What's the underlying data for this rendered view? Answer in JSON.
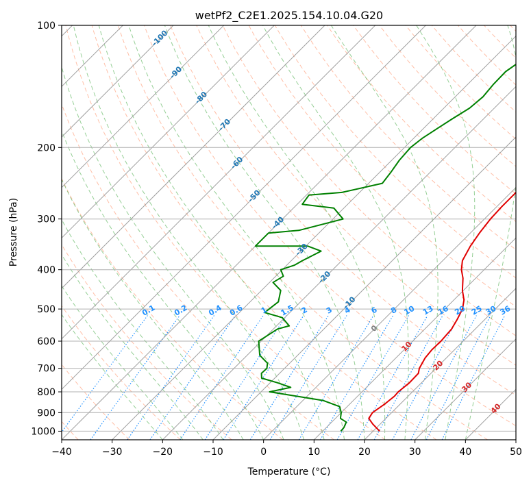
{
  "chart_data": {
    "type": "line",
    "title": "wetPf2_C2E1.2025.154.10.04.G20",
    "xlabel": "Temperature (°C)",
    "ylabel": "Pressure (hPa)",
    "xlim": [
      -40,
      50
    ],
    "ylim": [
      1050,
      100
    ],
    "y_scale": "log",
    "x_ticks": [
      -40,
      -30,
      -20,
      -10,
      0,
      10,
      20,
      30,
      40,
      50
    ],
    "x_tick_labels": [
      "−40",
      "−30",
      "−20",
      "−10",
      "0",
      "10",
      "20",
      "30",
      "40",
      "50"
    ],
    "y_ticks": [
      100,
      200,
      300,
      400,
      500,
      600,
      700,
      800,
      900,
      1000
    ],
    "y_tick_labels": [
      "100",
      "200",
      "300",
      "400",
      "500",
      "600",
      "700",
      "800",
      "900",
      "1000"
    ],
    "grid": true,
    "skew": 1.0,
    "series": [
      {
        "kind": "temperature",
        "color": "#e00000",
        "points": [
          [
            21.3,
            1000
          ],
          [
            18.5,
            960
          ],
          [
            16.6,
            930
          ],
          [
            16.2,
            900
          ],
          [
            16.9,
            860
          ],
          [
            17.3,
            820
          ],
          [
            17.2,
            800
          ],
          [
            17.6,
            760
          ],
          [
            17.5,
            720
          ],
          [
            16.7,
            700
          ],
          [
            15.8,
            660
          ],
          [
            15.5,
            630
          ],
          [
            15.6,
            600
          ],
          [
            15.3,
            560
          ],
          [
            14.5,
            530
          ],
          [
            13.5,
            500
          ],
          [
            12.0,
            475
          ],
          [
            9.8,
            450
          ],
          [
            7.5,
            420
          ],
          [
            5.5,
            400
          ],
          [
            3.9,
            380
          ],
          [
            2.6,
            350
          ],
          [
            1.8,
            325
          ],
          [
            1.2,
            300
          ],
          [
            1.0,
            280
          ],
          [
            1.0,
            260
          ],
          [
            0.8,
            240
          ],
          [
            0.1,
            220
          ],
          [
            -1.6,
            200
          ],
          [
            -3.6,
            175
          ],
          [
            -5.6,
            155
          ],
          [
            -6.7,
            145
          ],
          [
            -8.0,
            130
          ],
          [
            -8.1,
            120
          ],
          [
            -7.5,
            110
          ],
          [
            -7.6,
            100
          ]
        ]
      },
      {
        "kind": "dewpoint",
        "color": "#008000",
        "points": [
          [
            13.6,
            1000
          ],
          [
            13.5,
            980
          ],
          [
            12.9,
            950
          ],
          [
            11.0,
            930
          ],
          [
            10.0,
            900
          ],
          [
            8.5,
            870
          ],
          [
            4.0,
            840
          ],
          [
            -8.3,
            800
          ],
          [
            -5.0,
            780
          ],
          [
            -8.5,
            760
          ],
          [
            -12.6,
            740
          ],
          [
            -13.6,
            720
          ],
          [
            -13.5,
            700
          ],
          [
            -14.4,
            680
          ],
          [
            -17.5,
            650
          ],
          [
            -20.5,
            600
          ],
          [
            -19.2,
            560
          ],
          [
            -17.5,
            550
          ],
          [
            -20.5,
            525
          ],
          [
            -25.0,
            510
          ],
          [
            -24.4,
            480
          ],
          [
            -26.2,
            450
          ],
          [
            -29.3,
            430
          ],
          [
            -28.5,
            415
          ],
          [
            -30.3,
            400
          ],
          [
            -28.5,
            390
          ],
          [
            -27.8,
            380
          ],
          [
            -26.0,
            360
          ],
          [
            -29.6,
            350
          ],
          [
            -40.0,
            350
          ],
          [
            -40.0,
            325
          ],
          [
            -34.5,
            320
          ],
          [
            -28.0,
            300
          ],
          [
            -32.0,
            282
          ],
          [
            -39.0,
            276
          ],
          [
            -39.5,
            262
          ],
          [
            -33.5,
            258
          ],
          [
            -27.3,
            245
          ],
          [
            -27.8,
            230
          ],
          [
            -28.5,
            215
          ],
          [
            -28.8,
            200
          ],
          [
            -28.3,
            190
          ],
          [
            -27.3,
            180
          ],
          [
            -26.2,
            170
          ],
          [
            -24.9,
            160
          ],
          [
            -24.5,
            150
          ],
          [
            -24.9,
            140
          ],
          [
            -25.0,
            130
          ],
          [
            -23.8,
            120
          ],
          [
            -23.5,
            110
          ],
          [
            -23.1,
            100
          ]
        ]
      }
    ],
    "isotherm_labels": [
      "-100",
      "-90",
      "-80",
      "-70",
      "-60",
      "-50",
      "-40",
      "-30",
      "-20",
      "-10",
      "0",
      "10",
      "20",
      "30",
      "40"
    ],
    "mixing_ratio_labels": [
      "0.1",
      "0.2",
      "0.4",
      "0.6",
      "1",
      "1.5",
      "2",
      "3",
      "4",
      "6",
      "8",
      "10",
      "13",
      "16",
      "20",
      "25",
      "30",
      "36"
    ],
    "colors": {
      "isotherm_cold": "#1f77b4",
      "isotherm_zero": "#808080",
      "isotherm_warm": "#d62728",
      "mixing_ratio": "#1e90ff",
      "dry_adiabat": "#ff7f50",
      "moist_adiabat": "#2ca02c",
      "isobar_grid": "#b0b0b0"
    }
  }
}
